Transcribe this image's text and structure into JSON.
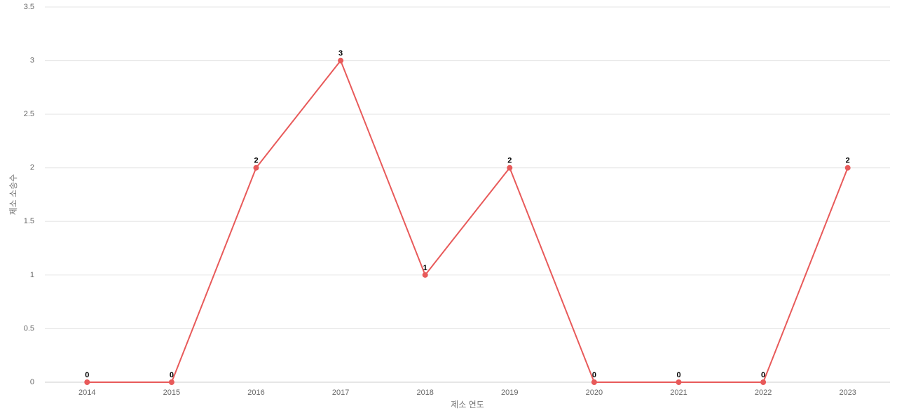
{
  "chart_data": {
    "type": "line",
    "x_label": "제소 연도",
    "y_label": "제소 소송수",
    "categories": [
      "2014",
      "2015",
      "2016",
      "2017",
      "2018",
      "2019",
      "2020",
      "2021",
      "2022",
      "2023"
    ],
    "values": [
      0,
      0,
      2,
      3,
      1,
      2,
      0,
      0,
      0,
      2
    ],
    "color": "#e85a5a",
    "ylim": [
      0,
      3.5
    ],
    "yticks": [
      0,
      0.5,
      1,
      1.5,
      2,
      2.5,
      3,
      3.5
    ],
    "grid": true
  }
}
